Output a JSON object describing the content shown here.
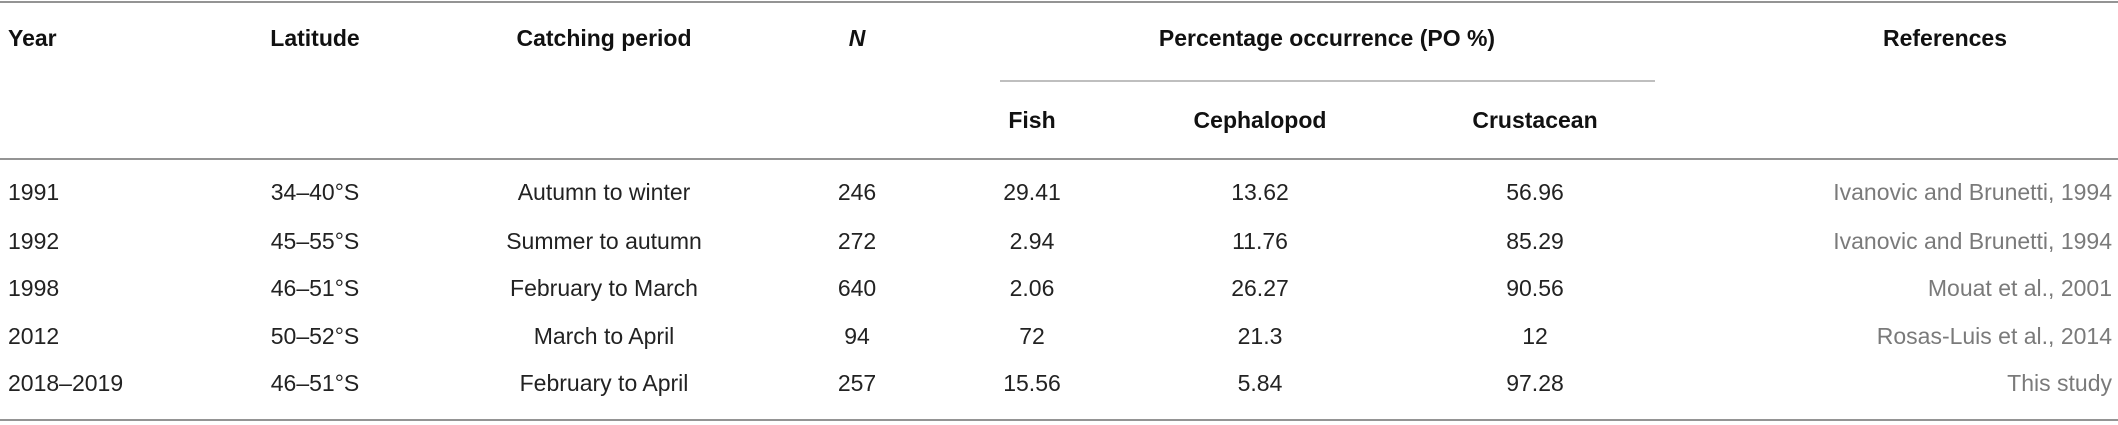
{
  "table": {
    "group_header": "Percentage occurrence (PO %)",
    "columns": [
      "Year",
      "Latitude",
      "Catching period",
      "N",
      "Fish",
      "Cephalopod",
      "Crustacean",
      "References"
    ],
    "rows": [
      [
        "1991",
        "34–40°S",
        "Autumn to winter",
        "246",
        "29.41",
        "13.62",
        "56.96",
        "Ivanovic and Brunetti, 1994"
      ],
      [
        "1992",
        "45–55°S",
        "Summer to autumn",
        "272",
        "2.94",
        "11.76",
        "85.29",
        "Ivanovic and Brunetti, 1994"
      ],
      [
        "1998",
        "46–51°S",
        "February to March",
        "640",
        "2.06",
        "26.27",
        "90.56",
        "Mouat et al., 2001"
      ],
      [
        "2012",
        "50–52°S",
        "March to April",
        "94",
        "72",
        "21.3",
        "12",
        "Rosas-Luis et al., 2014"
      ],
      [
        "2018–2019",
        "46–51°S",
        "February to April",
        "257",
        "15.56",
        "5.84",
        "97.28",
        "This study"
      ]
    ]
  }
}
